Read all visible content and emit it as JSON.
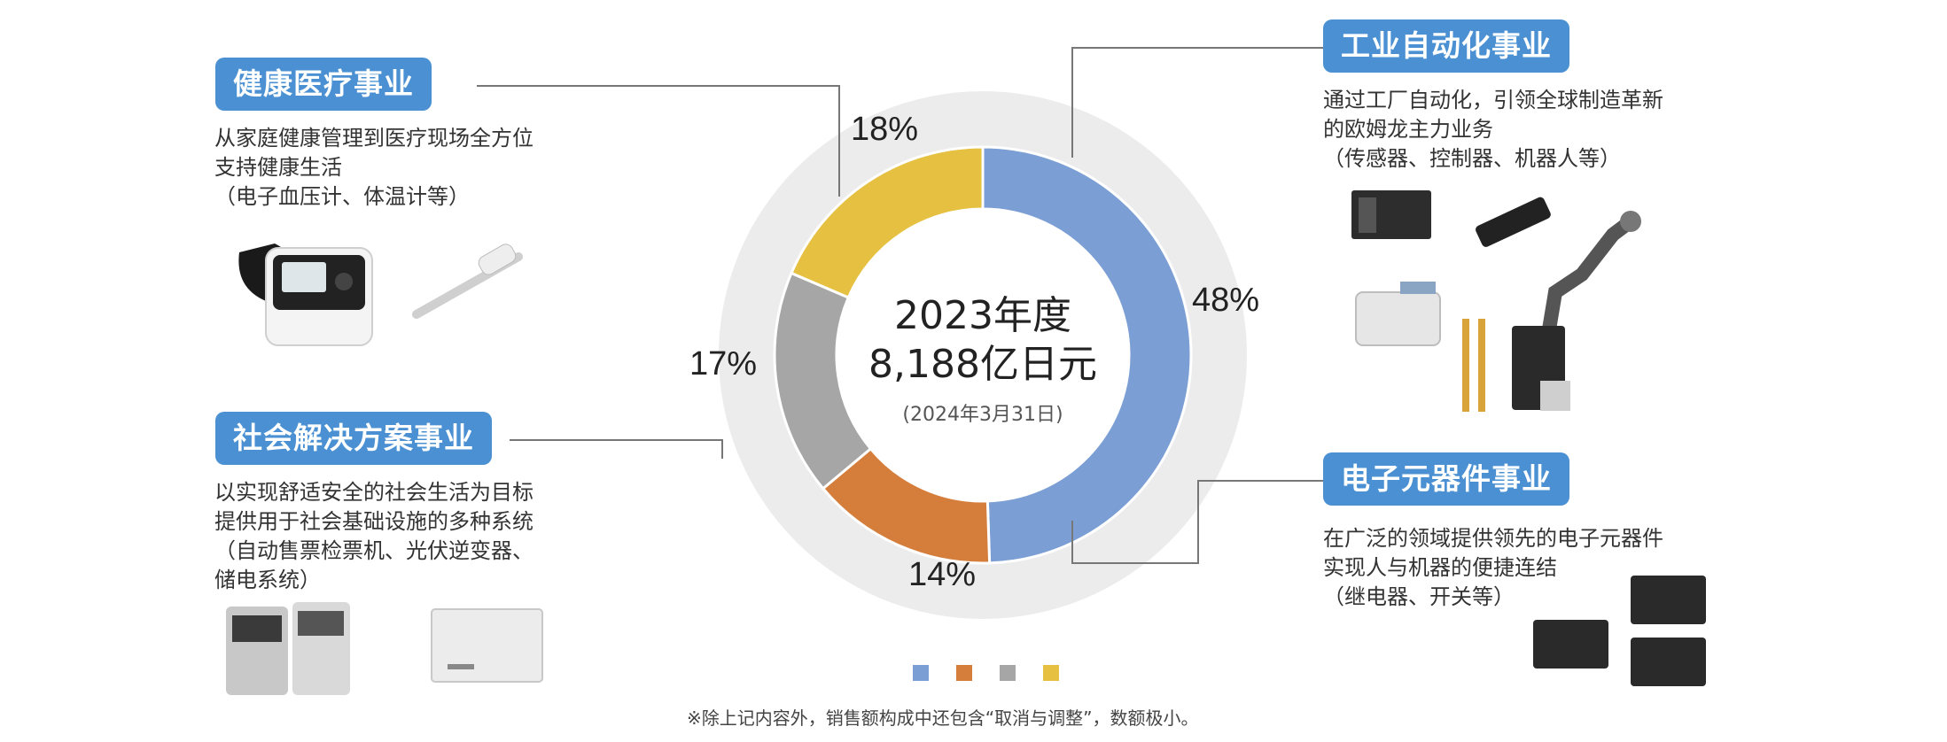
{
  "chart_data": {
    "type": "pie",
    "categories": [
      "工业自动化事业",
      "电子元器件事业",
      "社会解决方案事业",
      "健康医疗事业"
    ],
    "values": [
      48,
      14,
      17,
      18
    ],
    "labels": [
      "48%",
      "14%",
      "17%",
      "18%"
    ],
    "colors": [
      "#7b9fd5",
      "#d57e3b",
      "#a6a6a6",
      "#e6c040"
    ],
    "center": {
      "year": "2023年度",
      "amount": "8,188亿日元",
      "date": "(2024年3月31日)"
    },
    "donut": true
  },
  "segments": {
    "industrial": {
      "title": "工业自动化事业",
      "desc": [
        "通过工厂自动化，引领全球制造革新",
        "的欧姆龙主力业务",
        "（传感器、控制器、机器人等）"
      ]
    },
    "health": {
      "title": "健康医疗事业",
      "desc": [
        "从家庭健康管理到医疗现场全方位",
        "支持健康生活",
        "（电子血压计、体温计等）"
      ]
    },
    "social": {
      "title": "社会解决方案事业",
      "desc": [
        "以实现舒适安全的社会生活为目标",
        "提供用于社会基础设施的多种系统",
        "（自动售票检票机、光伏逆变器、",
        "储电系统）"
      ]
    },
    "device": {
      "title": "电子元器件事业",
      "desc": [
        "在广泛的领域提供领先的电子元器件",
        "实现人与机器的便捷连结",
        "（继电器、开关等）"
      ]
    }
  },
  "footnote": "※除上记内容外，销售额构成中还包含“取消与调整”，数额极小。"
}
